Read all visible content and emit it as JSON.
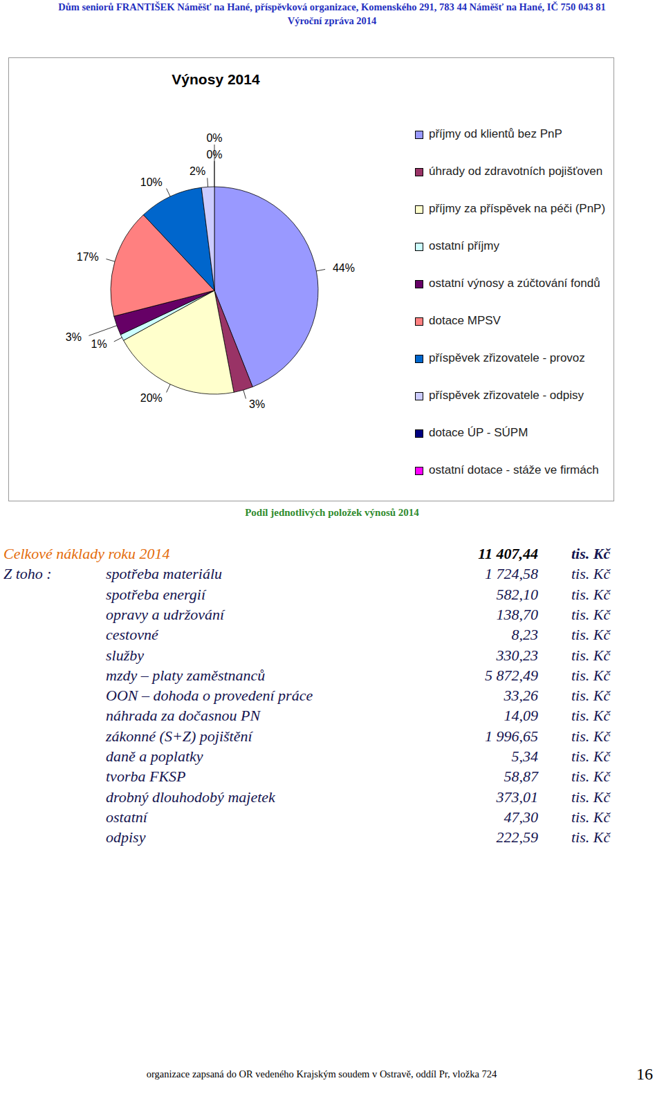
{
  "header": {
    "lines": [
      "Dům seniorů FRANTIŠEK Náměšť na Hané, příspěvková organizace, Komenského 291, 783 44 Náměšť na Hané, IČ 750 043 81",
      "Výroční zpráva 2014"
    ]
  },
  "chart_data": {
    "type": "pie",
    "title": "Výnosy 2014",
    "subtitle": "Podíl jednotlivých položek výnosů 2014",
    "categories": [
      "příjmy od klientů bez PnP",
      "úhrady od zdravotních pojišťoven",
      "příjmy za příspěvek na péči (PnP)",
      "ostatní příjmy",
      "ostatní výnosy a zúčtování fondů",
      "dotace MPSV",
      "příspěvek zřizovatele - provoz",
      "příspěvek zřizovatele - odpisy",
      "dotace ÚP - SÚPM",
      "ostatní dotace - stáže ve firmách"
    ],
    "values": [
      44,
      3,
      20,
      1,
      3,
      17,
      10,
      2,
      0,
      0
    ],
    "value_labels": [
      "44%",
      "3%",
      "20%",
      "1%",
      "3%",
      "17%",
      "10%",
      "2%",
      "0%",
      "0%"
    ],
    "colors": [
      "#9999ff",
      "#993366",
      "#ffffcc",
      "#ccffff",
      "#660066",
      "#ff8080",
      "#0066cc",
      "#ccccff",
      "#000080",
      "#ff00ff"
    ],
    "data_labels": true,
    "legend": "right"
  },
  "costs": {
    "title": "Celkové náklady roku 2014",
    "total": "11 407,44",
    "unit": "tis. Kč",
    "prefix": "Z toho :",
    "rows": [
      {
        "label": "spotřeba materiálu",
        "value": "1 724,58"
      },
      {
        "label": "spotřeba energií",
        "value": "582,10"
      },
      {
        "label": "opravy a udržování",
        "value": "138,70"
      },
      {
        "label": "cestovné",
        "value": "8,23"
      },
      {
        "label": "služby",
        "value": "330,23"
      },
      {
        "label": "mzdy – platy zaměstnanců",
        "value": "5 872,49"
      },
      {
        "label": "OON – dohoda o provedení práce",
        "value": "33,26"
      },
      {
        "label": "náhrada za dočasnou PN",
        "value": "14,09"
      },
      {
        "label": "zákonné (S+Z) pojištění",
        "value": "1 996,65"
      },
      {
        "label": "daně a poplatky",
        "value": "5,34"
      },
      {
        "label": "tvorba FKSP",
        "value": "58,87"
      },
      {
        "label": "drobný dlouhodobý majetek",
        "value": "373,01"
      },
      {
        "label": "ostatní",
        "value": "47,30"
      },
      {
        "label": "odpisy",
        "value": "222,59"
      }
    ]
  },
  "footer": {
    "text": "organizace zapsaná do OR vedeného Krajským soudem v Ostravě, oddíl Pr, vložka 724",
    "page": "16"
  }
}
